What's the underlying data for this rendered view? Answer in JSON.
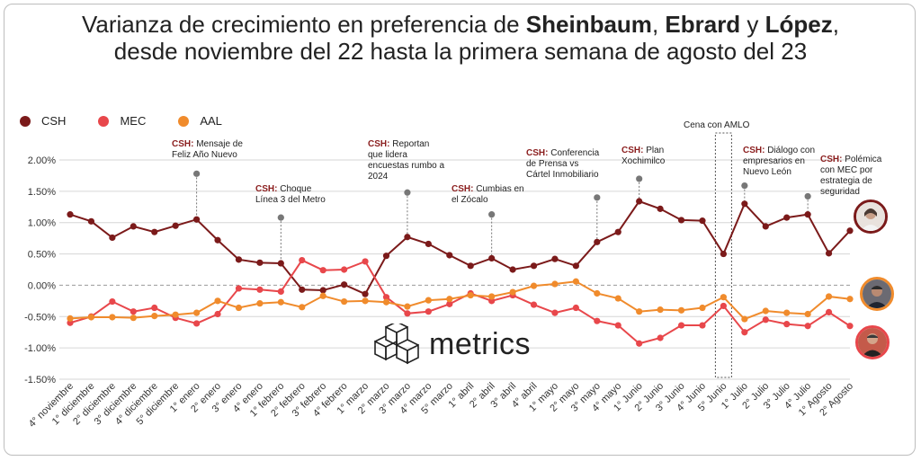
{
  "title": {
    "line1_pre": "Varianza de crecimiento en preferencia de ",
    "name1": "Sheinbaum",
    "sep1": ", ",
    "name2": "Ebrard",
    "sep2": " y ",
    "name3": "López",
    "line1_post": ",",
    "line2": "desde noviembre del 22 hasta la primera semana de agosto del 23"
  },
  "legend": [
    {
      "label": "CSH",
      "color": "#7b1a1a"
    },
    {
      "label": "MEC",
      "color": "#e8474b"
    },
    {
      "label": "AAL",
      "color": "#f08b2c"
    }
  ],
  "annotations": [
    {
      "lead": "CSH:",
      "text": " Mensaje de",
      "line2": "Feliz Año Nuevo"
    },
    {
      "lead": "CSH:",
      "text": " Choque",
      "line2": "Línea 3 del Metro"
    },
    {
      "lead": "CSH:",
      "text": " Reportan",
      "line2": "que lidera",
      "line3": "encuestas rumbo a",
      "line4": "2024"
    },
    {
      "lead": "CSH:",
      "text": " Cumbias en",
      "line2": "el Zócalo"
    },
    {
      "lead": "CSH:",
      "text": " Conferencia",
      "line2": "de Prensa vs",
      "line3": "Cártel Inmobiliario"
    },
    {
      "lead": "CSH:",
      "text": " Plan",
      "line2": "Xochimilco"
    },
    {
      "lead": "",
      "text": "Cena con AMLO"
    },
    {
      "lead": "CSH:",
      "text": " Diálogo con",
      "line2": "empresarios en",
      "line3": "Nuevo León"
    },
    {
      "lead": "CSH:",
      "text": " Polémica",
      "line2": "con MEC por",
      "line3": "estrategia de",
      "line4": "seguridad"
    }
  ],
  "logo_text": "metrics",
  "chart_data": {
    "type": "line",
    "title": "Varianza de crecimiento en preferencia de Sheinbaum, Ebrard y López, desde noviembre del 22 hasta la primera semana de agosto del 23",
    "xlabel": "",
    "ylabel": "",
    "ylim": [
      -1.5,
      2.0
    ],
    "yticks": [
      "2.00%",
      "1.50%",
      "1.00%",
      "0.50%",
      "0.00%",
      "-0.50%",
      "-1.00%",
      "-1.50%"
    ],
    "ytick_values": [
      2.0,
      1.5,
      1.0,
      0.5,
      0.0,
      -0.5,
      -1.0,
      -1.5
    ],
    "grid": true,
    "legend_position": "top-left",
    "categories": [
      "4° noviembre",
      "1° diciembre",
      "2° diciembre",
      "3° diciembre",
      "4° diciembre",
      "5° diciembre",
      "1° enero",
      "2° enero",
      "3° enero",
      "4° enero",
      "1° febrero",
      "2° febrero",
      "3° febrero",
      "4° febrero",
      "1° marzo",
      "2° marzo",
      "3° marzo",
      "4° marzo",
      "5° marzo",
      "1° abril",
      "2° abril",
      "3° abril",
      "4° abril",
      "1° mayo",
      "2° mayo",
      "3° mayo",
      "4° mayo",
      "1° Junio",
      "2° Junio",
      "3° Junio",
      "4° Junio",
      "5° Junio",
      "1° Julio",
      "2° Julio",
      "3° Julio",
      "4° Julio",
      "1° Agosto",
      "2° Agosto"
    ],
    "series": [
      {
        "name": "CSH",
        "color": "#7b1a1a",
        "values": [
          1.13,
          1.02,
          0.76,
          0.94,
          0.85,
          0.95,
          1.05,
          0.72,
          0.41,
          0.36,
          0.35,
          -0.07,
          -0.08,
          0.01,
          -0.14,
          0.47,
          0.77,
          0.66,
          0.48,
          0.31,
          0.43,
          0.25,
          0.31,
          0.42,
          0.31,
          0.69,
          0.85,
          1.34,
          1.22,
          1.04,
          1.03,
          0.5,
          1.3,
          0.94,
          1.08,
          1.13,
          0.51,
          0.87
        ]
      },
      {
        "name": "MEC",
        "color": "#e8474b",
        "values": [
          -0.6,
          -0.5,
          -0.26,
          -0.42,
          -0.36,
          -0.52,
          -0.61,
          -0.46,
          -0.05,
          -0.07,
          -0.1,
          0.4,
          0.24,
          0.25,
          0.38,
          -0.19,
          -0.45,
          -0.42,
          -0.3,
          -0.13,
          -0.25,
          -0.16,
          -0.31,
          -0.44,
          -0.36,
          -0.57,
          -0.64,
          -0.93,
          -0.84,
          -0.64,
          -0.64,
          -0.33,
          -0.75,
          -0.55,
          -0.62,
          -0.65,
          -0.43,
          -0.65
        ]
      },
      {
        "name": "AAL",
        "color": "#f08b2c",
        "values": [
          -0.53,
          -0.51,
          -0.51,
          -0.52,
          -0.49,
          -0.47,
          -0.44,
          -0.25,
          -0.36,
          -0.29,
          -0.27,
          -0.35,
          -0.17,
          -0.26,
          -0.25,
          -0.27,
          -0.34,
          -0.24,
          -0.22,
          -0.16,
          -0.18,
          -0.11,
          -0.01,
          0.02,
          0.06,
          -0.13,
          -0.21,
          -0.42,
          -0.39,
          -0.4,
          -0.36,
          -0.19,
          -0.54,
          -0.41,
          -0.44,
          -0.46,
          -0.18,
          -0.22
        ]
      }
    ],
    "markers": [
      {
        "category_index": 6,
        "y": 1.78
      },
      {
        "category_index": 10,
        "y": 1.08
      },
      {
        "category_index": 16,
        "y": 1.48
      },
      {
        "category_index": 20,
        "y": 1.13
      },
      {
        "category_index": 25,
        "y": 1.4
      },
      {
        "category_index": 27,
        "y": 1.7
      },
      {
        "category_index": 32,
        "y": 1.59
      },
      {
        "category_index": 35,
        "y": 1.42
      }
    ],
    "highlight_box": {
      "category_index": 31,
      "label": "Cena con AMLO"
    }
  }
}
